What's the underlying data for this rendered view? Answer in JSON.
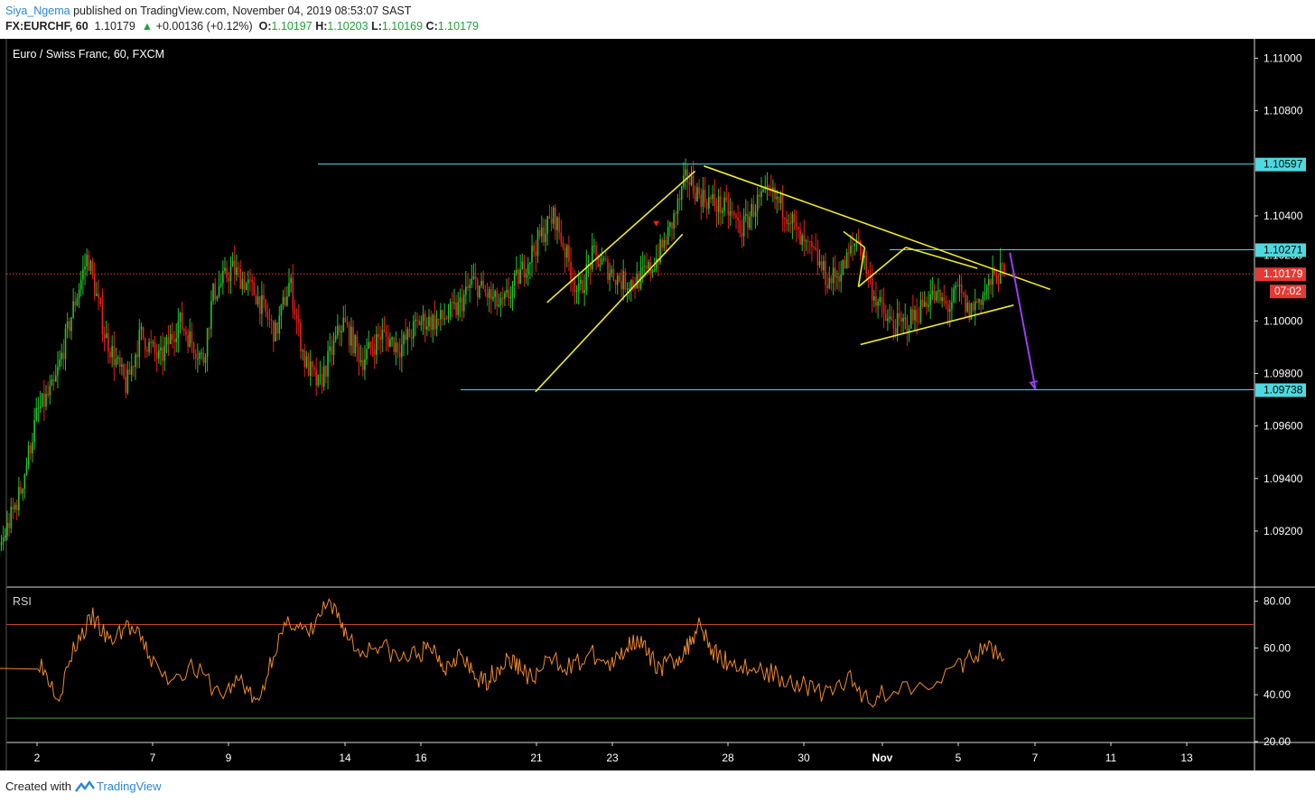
{
  "header": {
    "author": "Siya_Ngema",
    "published": "published on TradingView.com, November 04, 2019 08:53:07 SAST",
    "symbol": "FX:EURCHF, 60",
    "last": "1.10179",
    "change": "+0.00136 (+0.12%)",
    "o_label": "O:",
    "o": "1.10197",
    "h_label": "H:",
    "h": "1.10203",
    "l_label": "L:",
    "l": "1.10169",
    "c_label": "C:",
    "c": "1.10179"
  },
  "chart_title": "Euro / Swiss Franc, 60, FXCM",
  "footer": {
    "prefix": "Created with",
    "brand": "TradingView"
  },
  "colors": {
    "background": "#000000",
    "bull": "#22c32a",
    "bear": "#e8201a",
    "pattern_lines": "#f0ea27",
    "levels": "#4dd9e0",
    "arrow": "#9b3ef2",
    "rsi": "#f28a2e",
    "rsi_upper": "#c4452a",
    "rsi_lower": "#4f9a48",
    "price_line": "#e53935"
  },
  "chart_data": [
    {
      "type": "candlestick",
      "title": "Euro / Swiss Franc, 60, FXCM",
      "x_ticks": [
        "2",
        "7",
        "9",
        "14",
        "16",
        "21",
        "23",
        "28",
        "30",
        "Nov",
        "5",
        "7",
        "11",
        "13"
      ],
      "y_ticks": [
        "1.09200",
        "1.09400",
        "1.09600",
        "1.09800",
        "1.10000",
        "1.10400",
        "1.10800",
        "1.11000"
      ],
      "y_tick_values": [
        1.092,
        1.094,
        1.096,
        1.098,
        1.1,
        1.104,
        1.108,
        1.11
      ],
      "ylim": [
        1.0899,
        1.1106
      ],
      "levels": [
        {
          "label": "1.10597",
          "value": 1.10597
        },
        {
          "label": "1.10271",
          "value": 1.10271
        },
        {
          "label": "1.09738",
          "value": 1.09738
        }
      ],
      "current_price": {
        "label": "1.10179",
        "value": 1.10179,
        "countdown": "07:02"
      },
      "partial_label": "1.10250",
      "path": [
        [
          0,
          1.0915
        ],
        [
          0.8,
          1.0885
        ],
        [
          2.2,
          1.0925
        ],
        [
          3.0,
          1.0965
        ],
        [
          3.8,
          1.0975
        ],
        [
          4.6,
          1.0955
        ],
        [
          5.4,
          1.0975
        ],
        [
          6.2,
          1.0945
        ],
        [
          7.0,
          1.0905
        ],
        [
          8.0,
          1.0925
        ],
        [
          9.0,
          1.0935
        ],
        [
          10.0,
          1.0905
        ],
        [
          10.8,
          1.0875
        ],
        [
          12.0,
          1.0865
        ],
        [
          13.0,
          1.0915
        ],
        [
          13.8,
          1.0935
        ],
        [
          14.5,
          1.0965
        ],
        [
          15.2,
          1.0975
        ],
        [
          16.0,
          1.1005
        ],
        [
          16.6,
          1.1025
        ],
        [
          17.3,
          1.0995
        ],
        [
          18.2,
          1.0975
        ],
        [
          18.8,
          1.0995
        ],
        [
          19.6,
          1.0985
        ],
        [
          20.4,
          1.1
        ],
        [
          21.4,
          1.0985
        ],
        [
          21.8,
          1.101
        ],
        [
          22.6,
          1.102
        ],
        [
          23.6,
          1.101
        ],
        [
          24.4,
          1.0995
        ],
        [
          25.0,
          1.1015
        ],
        [
          25.6,
          1.0985
        ],
        [
          26.2,
          1.0975
        ],
        [
          26.6,
          1.0985
        ],
        [
          27.2,
          1.1
        ],
        [
          28.0,
          1.0985
        ],
        [
          28.8,
          1.0995
        ],
        [
          29.6,
          1.099
        ],
        [
          30.4,
          1.1
        ],
        [
          31.2,
          1.1
        ],
        [
          32.0,
          1.1005
        ],
        [
          32.6,
          1.1015
        ],
        [
          33.2,
          1.101
        ],
        [
          33.8,
          1.1005
        ],
        [
          34.4,
          1.1015
        ],
        [
          35.0,
          1.1025
        ],
        [
          35.6,
          1.1035
        ],
        [
          36.0,
          1.104
        ],
        [
          36.5,
          1.1025
        ],
        [
          37.0,
          1.101
        ],
        [
          37.6,
          1.1025
        ],
        [
          38.2,
          1.102
        ],
        [
          38.8,
          1.1015
        ],
        [
          39.4,
          1.1015
        ],
        [
          40.0,
          1.102
        ],
        [
          40.6,
          1.103
        ],
        [
          41.0,
          1.104
        ],
        [
          41.5,
          1.1055
        ],
        [
          42.0,
          1.1048
        ],
        [
          42.6,
          1.1045
        ],
        [
          43.2,
          1.1042
        ],
        [
          43.8,
          1.1035
        ],
        [
          44.4,
          1.1045
        ],
        [
          45.0,
          1.1048
        ],
        [
          45.8,
          1.104
        ],
        [
          46.2,
          1.103
        ],
        [
          46.8,
          1.1025
        ],
        [
          47.4,
          1.1015
        ],
        [
          48.0,
          1.102
        ],
        [
          48.6,
          1.1032
        ],
        [
          49.2,
          1.1012
        ],
        [
          49.8,
          1.1
        ],
        [
          50.4,
          1.0998
        ],
        [
          51.0,
          1.1002
        ],
        [
          51.6,
          1.101
        ],
        [
          52.0,
          1.1008
        ],
        [
          52.4,
          1.1005
        ],
        [
          52.8,
          1.1012
        ],
        [
          53.2,
          1.1003
        ],
        [
          53.8,
          1.101
        ],
        [
          54.4,
          1.1018
        ],
        [
          54.7,
          1.10179
        ]
      ],
      "pattern_lines": [
        [
          [
            30.8,
            1.1007
          ],
          [
            40.6,
            1.1057
          ]
        ],
        [
          [
            30.2,
            1.0973
          ],
          [
            39.6,
            1.1033
          ]
        ],
        [
          [
            41.3,
            1.1059
          ],
          [
            58.0,
            1.1012
          ]
        ],
        [
          [
            48.8,
            1.1034
          ],
          [
            49.8,
            1.1028
          ]
        ],
        [
          [
            49.8,
            1.1028
          ],
          [
            49.5,
            1.1013
          ]
        ],
        [
          [
            49.5,
            1.1013
          ],
          [
            51.2,
            1.1028
          ]
        ],
        [
          [
            51.2,
            1.1028
          ],
          [
            53.4,
            1.102
          ]
        ],
        [
          [
            49.6,
            1.0991
          ],
          [
            55.2,
            1.1006
          ]
        ]
      ],
      "projection_arrow": [
        [
          55.0,
          1.1026
        ],
        [
          56.4,
          1.0974
        ]
      ],
      "down_marker": [
        37.5,
        1.1037
      ]
    },
    {
      "type": "line",
      "title": "RSI",
      "y_ticks": [
        "20.00",
        "40.00",
        "60.00",
        "80.00"
      ],
      "y_tick_values": [
        20,
        40,
        60,
        80
      ],
      "ylim": [
        20,
        86
      ],
      "levels": [
        70,
        30
      ],
      "path": [
        [
          0,
          64
        ],
        [
          1,
          52
        ],
        [
          2,
          40
        ],
        [
          3,
          62
        ],
        [
          4,
          73
        ],
        [
          5,
          62
        ],
        [
          6,
          70
        ],
        [
          7,
          62
        ],
        [
          8,
          47
        ],
        [
          9,
          52
        ],
        [
          10,
          40
        ],
        [
          11,
          47
        ],
        [
          12,
          35
        ],
        [
          13,
          60
        ],
        [
          14,
          72
        ],
        [
          15,
          65
        ],
        [
          16,
          78
        ],
        [
          17,
          72
        ],
        [
          18,
          58
        ],
        [
          19,
          62
        ],
        [
          20,
          55
        ],
        [
          21,
          58
        ],
        [
          22,
          60
        ],
        [
          23,
          52
        ],
        [
          24,
          58
        ],
        [
          25,
          50
        ],
        [
          26,
          45
        ],
        [
          27,
          50
        ],
        [
          28,
          55
        ],
        [
          29,
          52
        ],
        [
          30,
          46
        ],
        [
          31,
          55
        ],
        [
          32,
          52
        ],
        [
          33,
          57
        ],
        [
          34,
          52
        ],
        [
          35,
          60
        ],
        [
          36,
          65
        ],
        [
          37,
          55
        ],
        [
          38,
          52
        ],
        [
          39,
          55
        ],
        [
          40,
          60
        ],
        [
          41,
          72
        ],
        [
          42,
          58
        ],
        [
          43,
          55
        ],
        [
          44,
          52
        ],
        [
          45,
          50
        ],
        [
          46,
          47
        ],
        [
          47,
          44
        ],
        [
          48,
          40
        ],
        [
          49,
          47
        ],
        [
          50,
          38
        ],
        [
          51,
          42
        ],
        [
          52,
          48
        ],
        [
          53,
          55
        ],
        [
          54,
          60
        ],
        [
          54.7,
          57
        ]
      ]
    }
  ]
}
